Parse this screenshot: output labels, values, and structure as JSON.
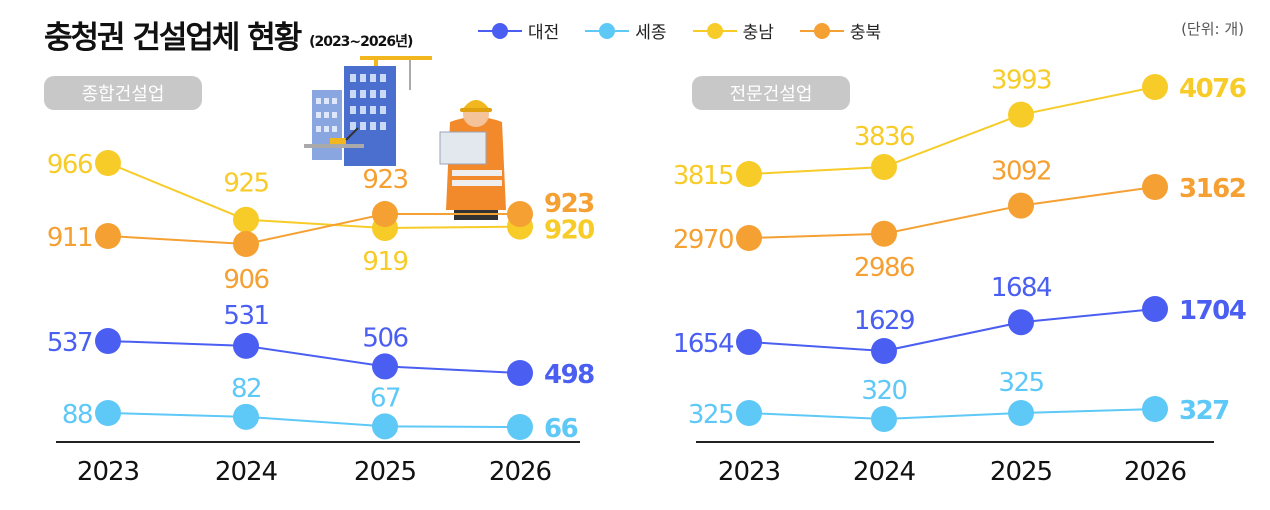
{
  "header": {
    "title": "충청권 건설업체 현황",
    "subtitle": "(2023~2026년)",
    "unit": "(단위: 개)"
  },
  "legend": [
    {
      "name": "대전",
      "color": "#4a5ef2"
    },
    {
      "name": "세종",
      "color": "#5ec8f7"
    },
    {
      "name": "충남",
      "color": "#f7cc29"
    },
    {
      "name": "충북",
      "color": "#f5a033"
    }
  ],
  "panels": {
    "general_label": "종합건설업",
    "specialty_label": "전문건설업"
  },
  "illustration": "construction-worker-illustration",
  "chart_data": [
    {
      "type": "line",
      "title": "종합건설업",
      "categories": [
        "2023",
        "2024",
        "2025",
        "2026"
      ],
      "series": [
        {
          "name": "충남",
          "values": [
            966,
            925,
            919,
            920
          ]
        },
        {
          "name": "충북",
          "values": [
            911,
            906,
            923,
            923
          ]
        },
        {
          "name": "대전",
          "values": [
            537,
            531,
            506,
            498
          ]
        },
        {
          "name": "세종",
          "values": [
            88,
            82,
            67,
            66
          ]
        }
      ]
    },
    {
      "type": "line",
      "title": "전문건설업",
      "categories": [
        "2023",
        "2024",
        "2025",
        "2026"
      ],
      "series": [
        {
          "name": "충남",
          "values": [
            3815,
            3836,
            3993,
            4076
          ]
        },
        {
          "name": "충북",
          "values": [
            2970,
            2986,
            3092,
            3162
          ]
        },
        {
          "name": "대전",
          "values": [
            1654,
            1629,
            1684,
            1704
          ]
        },
        {
          "name": "세종",
          "values": [
            325,
            320,
            325,
            327
          ]
        }
      ]
    }
  ]
}
